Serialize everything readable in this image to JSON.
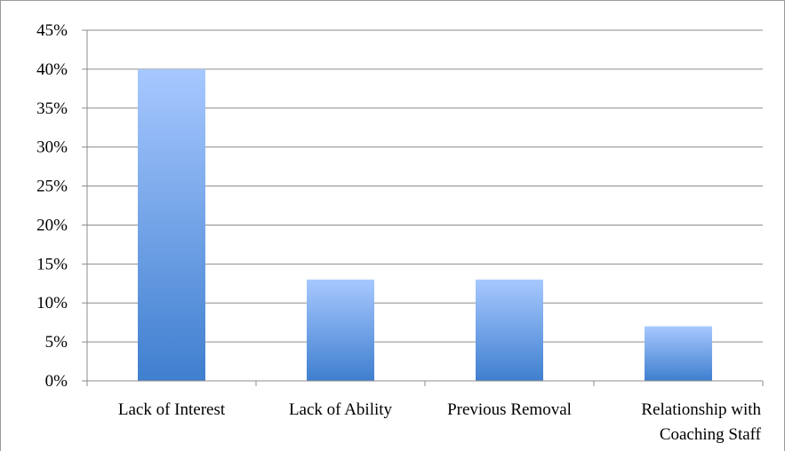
{
  "chart_data": {
    "type": "bar",
    "categories": [
      [
        "Lack of Interest"
      ],
      [
        "Lack of Ability"
      ],
      [
        "Previous Removal"
      ],
      [
        "Relationship with",
        "Coaching Staff"
      ]
    ],
    "values": [
      40,
      13,
      13,
      7
    ],
    "ylim": [
      0,
      45
    ],
    "ytick_step": 5,
    "ytick_labels": [
      "0%",
      "5%",
      "10%",
      "15%",
      "20%",
      "25%",
      "30%",
      "35%",
      "40%",
      "45%"
    ],
    "grid": true,
    "legend": "none",
    "title": "",
    "xlabel": "",
    "ylabel": "",
    "colors": {
      "bar_top": "#a7c8ff",
      "bar_bottom": "#3f7fcf",
      "grid": "#8c8c8c",
      "axis": "#8c8c8c"
    }
  }
}
